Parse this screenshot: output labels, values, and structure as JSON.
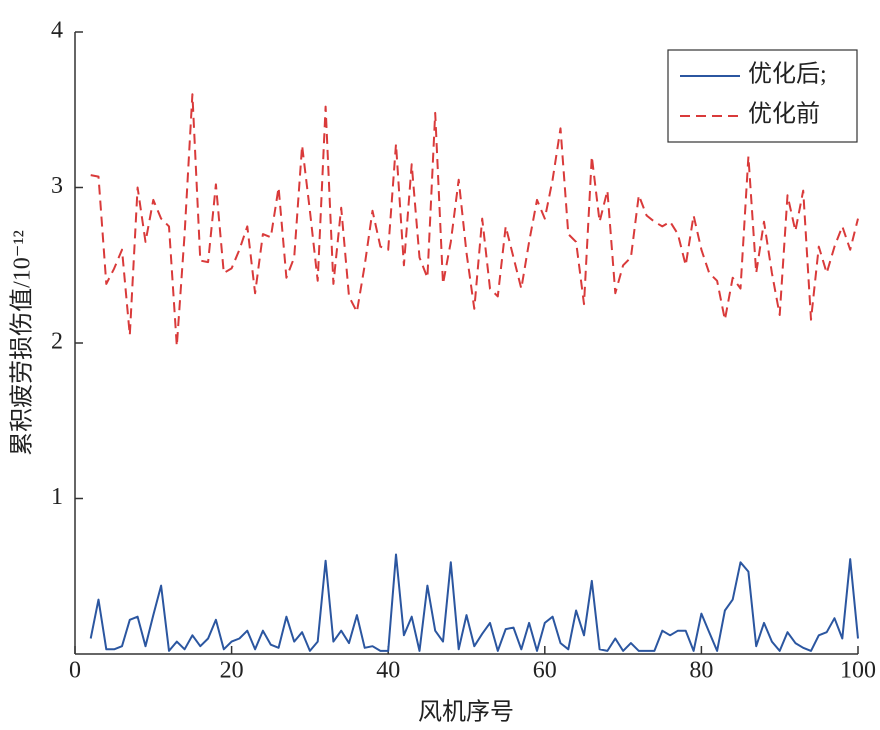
{
  "chart_data": {
    "type": "line",
    "xlabel": "风机序号",
    "ylabel": "累积疲劳损伤值/10⁻¹²",
    "xlim": [
      0,
      100
    ],
    "ylim": [
      0,
      4
    ],
    "xticks": [
      0,
      20,
      40,
      60,
      80,
      100
    ],
    "yticks": [
      1,
      2,
      3,
      4
    ],
    "legend": "upper right",
    "x": [
      2,
      3,
      4,
      5,
      6,
      7,
      8,
      9,
      10,
      11,
      12,
      13,
      14,
      15,
      16,
      17,
      18,
      19,
      20,
      21,
      22,
      23,
      24,
      25,
      26,
      27,
      28,
      29,
      30,
      31,
      32,
      33,
      34,
      35,
      36,
      37,
      38,
      39,
      40,
      41,
      42,
      43,
      44,
      45,
      46,
      47,
      48,
      49,
      50,
      51,
      52,
      53,
      54,
      55,
      56,
      57,
      58,
      59,
      60,
      61,
      62,
      63,
      64,
      65,
      66,
      67,
      68,
      69,
      70,
      71,
      72,
      73,
      74,
      75,
      76,
      77,
      78,
      79,
      80,
      81,
      82,
      83,
      84,
      85,
      86,
      87,
      88,
      89,
      90,
      91,
      92,
      93,
      94,
      95,
      96,
      97,
      98,
      99,
      100
    ],
    "series": [
      {
        "name": "优化后;",
        "color": "#2b56a0",
        "dash": false,
        "values": [
          0.1,
          0.35,
          0.03,
          0.03,
          0.05,
          0.22,
          0.24,
          0.05,
          0.25,
          0.44,
          0.02,
          0.08,
          0.03,
          0.12,
          0.05,
          0.1,
          0.22,
          0.03,
          0.08,
          0.1,
          0.15,
          0.03,
          0.15,
          0.06,
          0.04,
          0.24,
          0.08,
          0.14,
          0.02,
          0.08,
          0.6,
          0.08,
          0.15,
          0.07,
          0.25,
          0.04,
          0.05,
          0.02,
          0.02,
          0.64,
          0.12,
          0.24,
          0.02,
          0.44,
          0.15,
          0.08,
          0.59,
          0.03,
          0.25,
          0.05,
          0.13,
          0.2,
          0.02,
          0.16,
          0.17,
          0.03,
          0.2,
          0.02,
          0.2,
          0.24,
          0.07,
          0.03,
          0.28,
          0.12,
          0.47,
          0.03,
          0.02,
          0.1,
          0.02,
          0.07,
          0.02,
          0.02,
          0.02,
          0.15,
          0.12,
          0.15,
          0.15,
          0.02,
          0.26,
          0.14,
          0.02,
          0.28,
          0.35,
          0.59,
          0.53,
          0.05,
          0.2,
          0.08,
          0.02,
          0.14,
          0.07,
          0.04,
          0.02,
          0.12,
          0.14,
          0.23,
          0.1,
          0.61,
          0.1
        ]
      },
      {
        "name": "优化前",
        "color": "#d93a3a",
        "dash": true,
        "values": [
          3.08,
          3.07,
          2.38,
          2.48,
          2.6,
          2.05,
          3.0,
          2.65,
          2.92,
          2.8,
          2.75,
          1.98,
          2.7,
          3.6,
          2.53,
          2.52,
          3.02,
          2.45,
          2.48,
          2.6,
          2.75,
          2.32,
          2.7,
          2.68,
          3.0,
          2.42,
          2.55,
          3.27,
          2.85,
          2.4,
          3.52,
          2.38,
          2.87,
          2.3,
          2.2,
          2.5,
          2.85,
          2.62,
          2.6,
          3.28,
          2.5,
          3.15,
          2.55,
          2.42,
          3.48,
          2.38,
          2.65,
          3.05,
          2.58,
          2.22,
          2.8,
          2.35,
          2.3,
          2.75,
          2.55,
          2.35,
          2.65,
          2.92,
          2.8,
          3.05,
          3.38,
          2.7,
          2.65,
          2.25,
          3.2,
          2.78,
          2.98,
          2.32,
          2.5,
          2.55,
          2.95,
          2.82,
          2.78,
          2.75,
          2.78,
          2.7,
          2.5,
          2.82,
          2.6,
          2.45,
          2.4,
          2.15,
          2.42,
          2.35,
          3.2,
          2.45,
          2.78,
          2.45,
          2.18,
          2.95,
          2.72,
          2.98,
          2.15,
          2.62,
          2.45,
          2.62,
          2.75,
          2.6,
          2.8
        ]
      }
    ]
  }
}
